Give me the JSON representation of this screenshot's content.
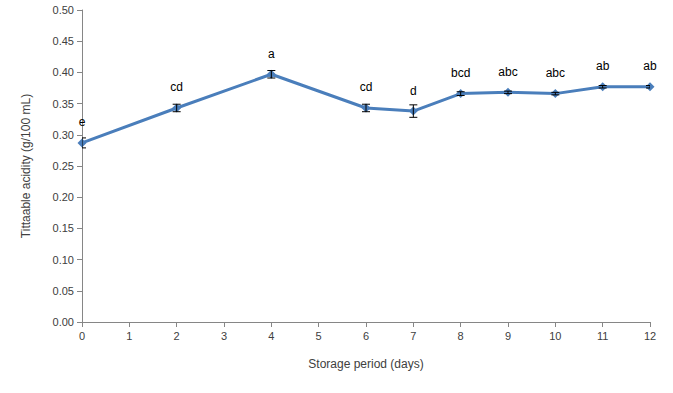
{
  "chart_data": {
    "type": "line",
    "x_label": "Storage period (days)",
    "y_label": "Tittaable acidity (g/100 mL)",
    "x": [
      0,
      2,
      4,
      6,
      7,
      8,
      9,
      10,
      11,
      12
    ],
    "values": [
      0.287,
      0.343,
      0.397,
      0.343,
      0.338,
      0.366,
      0.368,
      0.366,
      0.377,
      0.377
    ],
    "errors": [
      0.008,
      0.006,
      0.006,
      0.006,
      0.01,
      0.003,
      0.002,
      0.002,
      0.002,
      0.002
    ],
    "annotations": [
      "e",
      "cd",
      "a",
      "cd",
      "d",
      "bcd",
      "abc",
      "abc",
      "ab",
      "ab"
    ],
    "color": "#4a7ebb",
    "marker": "diamond",
    "xlim": [
      0,
      12
    ],
    "xticks": [
      0,
      1,
      2,
      3,
      4,
      5,
      6,
      7,
      8,
      9,
      10,
      11,
      12
    ],
    "ylim": [
      0,
      0.5
    ],
    "yticks": [
      {
        "value": 0,
        "label": "0.00"
      },
      {
        "value": 0.05,
        "label": "0.05"
      },
      {
        "value": 0.1,
        "label": "0.10"
      },
      {
        "value": 0.15,
        "label": "0.15"
      },
      {
        "value": 0.2,
        "label": "0.20"
      },
      {
        "value": 0.25,
        "label": "0.25"
      },
      {
        "value": 0.3,
        "label": "0.30"
      },
      {
        "value": 0.35,
        "label": "0.35"
      },
      {
        "value": 0.4,
        "label": "0.40"
      },
      {
        "value": 0.45,
        "label": "0.45"
      },
      {
        "value": 0.5,
        "label": "0.50"
      }
    ],
    "grid": false
  }
}
